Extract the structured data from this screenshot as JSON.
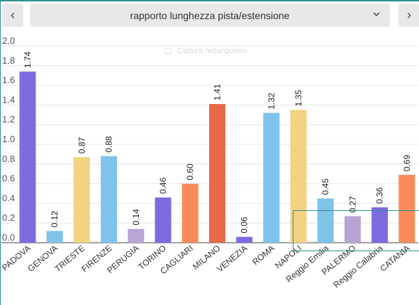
{
  "toolbar": {
    "prev_icon": "chevron-left-icon",
    "next_icon": "chevron-right-icon",
    "prev_glyph": "‹",
    "next_glyph": "›",
    "selector_label": "rapporto lunghezza pista/estensione",
    "selector_icon": "chevron-down-icon"
  },
  "overlay": {
    "capture_text": "Cattura rettangolare"
  },
  "chart_data": {
    "type": "bar",
    "title": "",
    "xlabel": "",
    "ylabel": "",
    "ylim": [
      0,
      2.0
    ],
    "yticks": [
      "0.0",
      "0.2",
      "0.4",
      "0.6",
      "0.8",
      "1.0",
      "1.2",
      "1.4",
      "1.6",
      "1.8",
      "2.0"
    ],
    "grid": true,
    "categories": [
      "PADOVA",
      "GENOVA",
      "TRIESTE",
      "FIRENZE",
      "PERUGIA",
      "TORINO",
      "CAGLIARI",
      "MILANO",
      "VENEZIA",
      "ROMA",
      "NAPOLI",
      "Reggio Emilia",
      "PALERMO",
      "Reggio Calabria",
      "CATANIA"
    ],
    "values": [
      1.74,
      0.12,
      0.87,
      0.88,
      0.14,
      0.46,
      0.6,
      1.41,
      0.06,
      1.32,
      1.35,
      0.45,
      0.27,
      0.36,
      0.69
    ],
    "value_labels": [
      "1.74",
      "0.12",
      "0.87",
      "0.88",
      "0.14",
      "0.46",
      "0.60",
      "1.41",
      "0.06",
      "1.32",
      "1.35",
      "0.45",
      "0.27",
      "0.36",
      "0.69"
    ],
    "colors": [
      "#7f6ae0",
      "#7fc3ea",
      "#f2d382",
      "#7fc3ea",
      "#b9a4d6",
      "#7f6ae0",
      "#fb8a5a",
      "#e8694a",
      "#7f6ae0",
      "#7fc3ea",
      "#f2d382",
      "#7fc3ea",
      "#b9a4d6",
      "#7f6ae0",
      "#fb8a5a"
    ]
  }
}
